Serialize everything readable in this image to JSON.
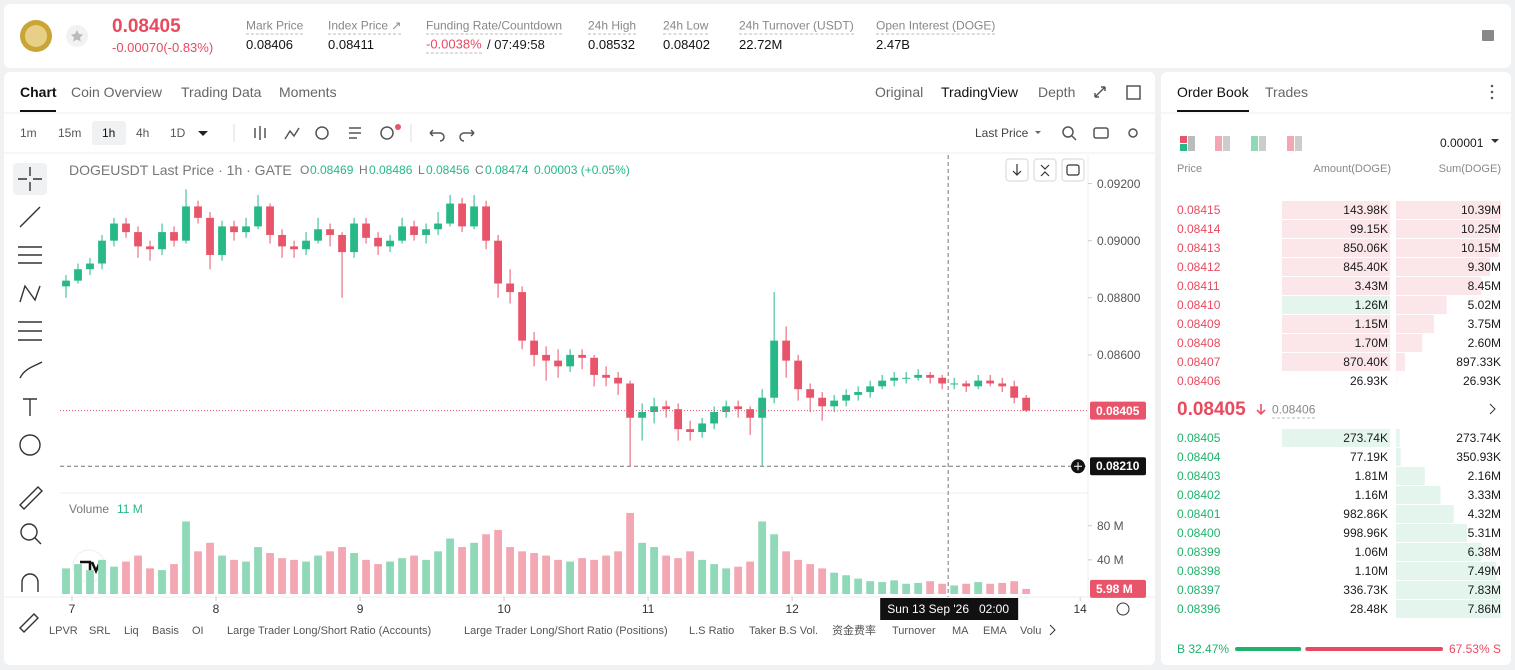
{
  "header": {
    "price": "0.08405",
    "change": "-0.00070(-0.83%)",
    "stats": [
      {
        "label": "Mark Price",
        "value": "0.08406"
      },
      {
        "label": "Index Price ↗",
        "value": "0.08411"
      },
      {
        "label": "Funding Rate/Countdown",
        "value": "-0.0038%",
        "value_color": "#e84a5f",
        "extra": "/ 07:49:58"
      },
      {
        "label": "24h High",
        "value": "0.08532"
      },
      {
        "label": "24h Low",
        "value": "0.08402"
      },
      {
        "label": "24h Turnover (USDT)",
        "value": "22.72M"
      },
      {
        "label": "Open Interest (DOGE)",
        "value": "2.47B"
      }
    ]
  },
  "tabs": [
    "Chart",
    "Coin Overview",
    "Trading Data",
    "Moments"
  ],
  "views": [
    "Original",
    "TradingView",
    "Depth"
  ],
  "intervals": [
    "1m",
    "15m",
    "1h",
    "4h",
    "1D"
  ],
  "price_type": "Last Price",
  "indicators": [
    "LPVR",
    "SRL",
    "Liq",
    "Basis",
    "OI",
    "Large Trader Long/Short Ratio (Accounts)",
    "Large Trader Long/Short Ratio (Positions)",
    "L.S Ratio",
    "Taker B.S Vol.",
    "资金费率",
    "Turnover",
    "MA",
    "EMA",
    "Volu"
  ],
  "chart_data": [
    {
      "type": "candlestick",
      "title": "DOGEUSDT Last Price · 1h · GATE",
      "legend": [
        {
          "k": "O",
          "v": "0.08469"
        },
        {
          "k": "H",
          "v": "0.08486"
        },
        {
          "k": "L",
          "v": "0.08456"
        },
        {
          "k": "C",
          "v": "0.08474"
        },
        {
          "k": "",
          "v": "0.00003 (+0.05%)"
        }
      ],
      "up_color": "#26b887",
      "down_color": "#e8546a",
      "x": [
        -1,
        1,
        3,
        5,
        7,
        9,
        11,
        13,
        15,
        17,
        19,
        21,
        23,
        25,
        27,
        29,
        31,
        33,
        35,
        37,
        39,
        41,
        43,
        45,
        47,
        49,
        51,
        53,
        55,
        57,
        59,
        61,
        63,
        65,
        67,
        69,
        71,
        73,
        75,
        77,
        79,
        81,
        83,
        85,
        87,
        89,
        91,
        93,
        95,
        97,
        99,
        101,
        103,
        105,
        107,
        109,
        111,
        113,
        115,
        117,
        119,
        121,
        123,
        125,
        127,
        129,
        131,
        133,
        135,
        137,
        139,
        141,
        143,
        145,
        147,
        149,
        151,
        153,
        155,
        157,
        159
      ],
      "candles": [
        [
          0.0884,
          0.0888,
          0.088,
          0.0886
        ],
        [
          0.0886,
          0.0892,
          0.0885,
          0.089
        ],
        [
          0.089,
          0.0894,
          0.0888,
          0.0892
        ],
        [
          0.0892,
          0.0902,
          0.089,
          0.09
        ],
        [
          0.09,
          0.0908,
          0.0898,
          0.0906
        ],
        [
          0.0906,
          0.0908,
          0.0901,
          0.0903
        ],
        [
          0.0903,
          0.0905,
          0.0894,
          0.0898
        ],
        [
          0.0898,
          0.09,
          0.0893,
          0.0897
        ],
        [
          0.0897,
          0.0906,
          0.0895,
          0.0903
        ],
        [
          0.0903,
          0.0905,
          0.0898,
          0.09
        ],
        [
          0.09,
          0.0918,
          0.0899,
          0.0912
        ],
        [
          0.0912,
          0.0914,
          0.0906,
          0.0908
        ],
        [
          0.0908,
          0.091,
          0.089,
          0.0895
        ],
        [
          0.0895,
          0.0907,
          0.0893,
          0.0905
        ],
        [
          0.0905,
          0.0907,
          0.09,
          0.0903
        ],
        [
          0.0903,
          0.0908,
          0.0901,
          0.0905
        ],
        [
          0.0905,
          0.0916,
          0.0904,
          0.0912
        ],
        [
          0.0912,
          0.0913,
          0.0899,
          0.0902
        ],
        [
          0.0902,
          0.0904,
          0.0894,
          0.0898
        ],
        [
          0.0898,
          0.09,
          0.0894,
          0.0897
        ],
        [
          0.0897,
          0.0903,
          0.0895,
          0.09
        ],
        [
          0.09,
          0.0908,
          0.0899,
          0.0904
        ],
        [
          0.0904,
          0.0906,
          0.0898,
          0.0902
        ],
        [
          0.0902,
          0.0903,
          0.088,
          0.0896
        ],
        [
          0.0896,
          0.0908,
          0.0894,
          0.0906
        ],
        [
          0.0906,
          0.0908,
          0.0899,
          0.0901
        ],
        [
          0.0901,
          0.0903,
          0.0895,
          0.0898
        ],
        [
          0.0898,
          0.0902,
          0.0896,
          0.09
        ],
        [
          0.09,
          0.0908,
          0.0899,
          0.0905
        ],
        [
          0.0905,
          0.0907,
          0.09,
          0.0902
        ],
        [
          0.0902,
          0.0906,
          0.0899,
          0.0904
        ],
        [
          0.0904,
          0.091,
          0.0902,
          0.0906
        ],
        [
          0.0906,
          0.0916,
          0.0905,
          0.0913
        ],
        [
          0.0913,
          0.0915,
          0.0903,
          0.0905
        ],
        [
          0.0905,
          0.0916,
          0.0904,
          0.0912
        ],
        [
          0.0912,
          0.0914,
          0.0897,
          0.09
        ],
        [
          0.09,
          0.0902,
          0.088,
          0.0885
        ],
        [
          0.0885,
          0.089,
          0.0878,
          0.0882
        ],
        [
          0.0882,
          0.0884,
          0.0862,
          0.0865
        ],
        [
          0.0865,
          0.0868,
          0.0856,
          0.086
        ],
        [
          0.086,
          0.0863,
          0.0851,
          0.0858
        ],
        [
          0.0858,
          0.0862,
          0.0852,
          0.0856
        ],
        [
          0.0856,
          0.0862,
          0.0854,
          0.086
        ],
        [
          0.086,
          0.0862,
          0.0855,
          0.0859
        ],
        [
          0.0859,
          0.086,
          0.0849,
          0.0853
        ],
        [
          0.0853,
          0.0856,
          0.0849,
          0.0852
        ],
        [
          0.0852,
          0.0854,
          0.0846,
          0.085
        ],
        [
          0.085,
          0.0851,
          0.0821,
          0.0838
        ],
        [
          0.0838,
          0.0843,
          0.083,
          0.084
        ],
        [
          0.084,
          0.0845,
          0.0836,
          0.0842
        ],
        [
          0.0842,
          0.0844,
          0.0838,
          0.0841
        ],
        [
          0.0841,
          0.0843,
          0.083,
          0.0834
        ],
        [
          0.0834,
          0.0837,
          0.083,
          0.0833
        ],
        [
          0.0833,
          0.0838,
          0.0831,
          0.0836
        ],
        [
          0.0836,
          0.0842,
          0.0834,
          0.084
        ],
        [
          0.084,
          0.0844,
          0.0838,
          0.0842
        ],
        [
          0.0842,
          0.0844,
          0.0838,
          0.0841
        ],
        [
          0.0841,
          0.0842,
          0.0832,
          0.0838
        ],
        [
          0.0838,
          0.0848,
          0.0821,
          0.0845
        ],
        [
          0.0845,
          0.0882,
          0.0843,
          0.0865
        ],
        [
          0.0865,
          0.087,
          0.0852,
          0.0858
        ],
        [
          0.0858,
          0.086,
          0.0844,
          0.0848
        ],
        [
          0.0848,
          0.085,
          0.084,
          0.0845
        ],
        [
          0.0845,
          0.0847,
          0.0837,
          0.0842
        ],
        [
          0.0842,
          0.0846,
          0.084,
          0.0844
        ],
        [
          0.0844,
          0.0848,
          0.0842,
          0.0846
        ],
        [
          0.0846,
          0.0849,
          0.0844,
          0.0847
        ],
        [
          0.0847,
          0.0851,
          0.0845,
          0.0849
        ],
        [
          0.0849,
          0.0853,
          0.0848,
          0.0851
        ],
        [
          0.0851,
          0.0854,
          0.0849,
          0.0852
        ],
        [
          0.0852,
          0.0854,
          0.085,
          0.0852
        ],
        [
          0.0852,
          0.0855,
          0.0851,
          0.0853
        ],
        [
          0.0853,
          0.0854,
          0.085,
          0.0852
        ],
        [
          0.0852,
          0.0853,
          0.0848,
          0.085
        ],
        [
          0.085,
          0.0852,
          0.0848,
          0.085
        ],
        [
          0.085,
          0.0851,
          0.0847,
          0.0849
        ],
        [
          0.0849,
          0.0853,
          0.0848,
          0.0851
        ],
        [
          0.0851,
          0.0853,
          0.0849,
          0.085
        ],
        [
          0.085,
          0.0852,
          0.0847,
          0.0849
        ],
        [
          0.0849,
          0.0851,
          0.0843,
          0.0845
        ],
        [
          0.0845,
          0.0846,
          0.084,
          0.08405
        ]
      ],
      "xlim": [
        -2,
        169.3
      ],
      "xticks": [
        {
          "value": 0,
          "label": "7"
        },
        {
          "value": 24,
          "label": "8"
        },
        {
          "value": 48,
          "label": "9"
        },
        {
          "value": 72,
          "label": "10"
        },
        {
          "value": 96,
          "label": "11"
        },
        {
          "value": 120,
          "label": "12"
        },
        {
          "value": 168,
          "label": "14"
        }
      ],
      "ylim": [
        0.0812,
        0.093
      ],
      "yticks": [
        {
          "value": 0.092,
          "label": "0.09200"
        },
        {
          "value": 0.09,
          "label": "0.09000"
        },
        {
          "value": 0.088,
          "label": "0.08800"
        },
        {
          "value": 0.086,
          "label": "0.08600"
        }
      ],
      "last": {
        "value": 0.08405,
        "label": "0.08405"
      },
      "crosshair": {
        "x": {
          "value": 146,
          "label": "Sun 13 Sep '26   02:00"
        },
        "y": {
          "value": 0.0821,
          "label": "0.08210"
        }
      }
    },
    {
      "type": "bar",
      "title": "Volume",
      "value_text": "11 M",
      "values": [
        30,
        35,
        28,
        40,
        32,
        38,
        45,
        30,
        28,
        35,
        85,
        50,
        60,
        45,
        40,
        38,
        55,
        48,
        42,
        40,
        38,
        45,
        50,
        55,
        48,
        40,
        35,
        38,
        42,
        45,
        40,
        50,
        65,
        55,
        60,
        70,
        75,
        55,
        50,
        48,
        45,
        40,
        38,
        42,
        40,
        45,
        50,
        95,
        60,
        55,
        45,
        42,
        50,
        40,
        35,
        30,
        32,
        38,
        85,
        70,
        50,
        40,
        35,
        30,
        25,
        22,
        18,
        15,
        14,
        16,
        12,
        13,
        15,
        12,
        10,
        12,
        14,
        12,
        13,
        15,
        5.98
      ],
      "ylim": [
        0,
        116
      ],
      "yticks": [
        {
          "value": 80,
          "label": "80 M"
        },
        {
          "value": 40,
          "label": "40 M"
        }
      ],
      "last": {
        "value": 5.98,
        "label": "5.98 M"
      }
    }
  ],
  "order_book": {
    "tabs": [
      "Order Book",
      "Trades"
    ],
    "precision": "0.00001",
    "headers": [
      "Price",
      "Amount(DOGE)",
      "Sum(DOGE)"
    ],
    "asks": [
      {
        "price": "0.08415",
        "amount": "143.98K",
        "highlight": "#fbe6e9",
        "sum": {
          "value": 10390000,
          "label": "10.39M"
        }
      },
      {
        "price": "0.08414",
        "amount": "99.15K",
        "highlight": "#fbe6e9",
        "sum": {
          "value": 10250000,
          "label": "10.25M"
        }
      },
      {
        "price": "0.08413",
        "amount": "850.06K",
        "highlight": "#fbe6e9",
        "sum": {
          "value": 10150000,
          "label": "10.15M"
        }
      },
      {
        "price": "0.08412",
        "amount": "845.40K",
        "highlight": "#fbe6e9",
        "sum": {
          "value": 9300000,
          "label": "9.30M"
        }
      },
      {
        "price": "0.08411",
        "amount": "3.43M",
        "highlight": "#fbe6e9",
        "sum": {
          "value": 8450000,
          "label": "8.45M"
        }
      },
      {
        "price": "0.08410",
        "amount": "1.26M",
        "highlight": "#e3f5ec",
        "sum": {
          "value": 5020000,
          "label": "5.02M"
        }
      },
      {
        "price": "0.08409",
        "amount": "1.15M",
        "highlight": "#fbe6e9",
        "sum": {
          "value": 3750000,
          "label": "3.75M"
        }
      },
      {
        "price": "0.08408",
        "amount": "1.70M",
        "highlight": "#fbe6e9",
        "sum": {
          "value": 2600000,
          "label": "2.60M"
        }
      },
      {
        "price": "0.08407",
        "amount": "870.40K",
        "highlight": "#fbe6e9",
        "sum": {
          "value": 897330,
          "label": "897.33K"
        }
      },
      {
        "price": "0.08406",
        "amount": "26.93K",
        "sum": {
          "value": 26930,
          "label": "26.93K"
        }
      }
    ],
    "mid": "0.08405",
    "mark": "0.08406",
    "bids": [
      {
        "price": "0.08405",
        "amount": "273.74K",
        "highlight": "#e3f5ec",
        "sum": {
          "value": 273740,
          "label": "273.74K"
        }
      },
      {
        "price": "0.08404",
        "amount": "77.19K",
        "sum": {
          "value": 350930,
          "label": "350.93K"
        }
      },
      {
        "price": "0.08403",
        "amount": "1.81M",
        "sum": {
          "value": 2160000,
          "label": "2.16M"
        }
      },
      {
        "price": "0.08402",
        "amount": "1.16M",
        "sum": {
          "value": 3330000,
          "label": "3.33M"
        }
      },
      {
        "price": "0.08401",
        "amount": "982.86K",
        "sum": {
          "value": 4320000,
          "label": "4.32M"
        }
      },
      {
        "price": "0.08400",
        "amount": "998.96K",
        "sum": {
          "value": 5310000,
          "label": "5.31M"
        }
      },
      {
        "price": "0.08399",
        "amount": "1.06M",
        "sum": {
          "value": 6380000,
          "label": "6.38M"
        }
      },
      {
        "price": "0.08398",
        "amount": "1.10M",
        "sum": {
          "value": 7490000,
          "label": "7.49M"
        }
      },
      {
        "price": "0.08397",
        "amount": "336.73K",
        "sum": {
          "value": 7830000,
          "label": "7.83M"
        }
      },
      {
        "price": "0.08396",
        "amount": "28.48K",
        "sum": {
          "value": 7860000,
          "label": "7.86M"
        }
      }
    ],
    "buy": {
      "value": 32.47,
      "label": "B 32.47%"
    },
    "sell": {
      "value": 67.53,
      "label": "67.53% S"
    }
  }
}
